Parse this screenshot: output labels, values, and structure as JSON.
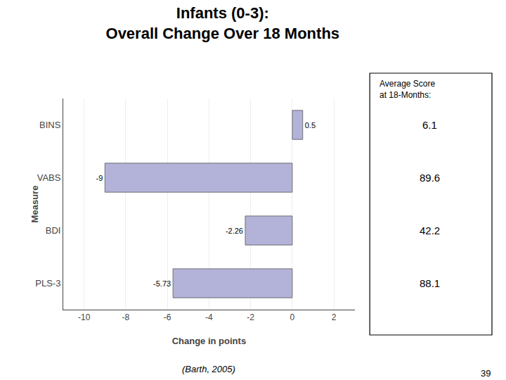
{
  "chart_data": {
    "type": "bar",
    "orientation": "horizontal",
    "title": "Infants (0-3):",
    "subtitle": "Overall Change Over 18 Months",
    "categories": [
      "PLS-3",
      "BDI",
      "VABS",
      "BINS"
    ],
    "values": [
      -5.73,
      -2.26,
      -9.0,
      0.5
    ],
    "data_labels": true,
    "color": "#b3b3d9",
    "xlabel": "Change in points",
    "ylabel": "Measure",
    "xlim": [
      -11,
      3
    ],
    "xticks": [
      -10,
      -8,
      -6,
      -4,
      -2,
      0,
      2
    ],
    "grid": true,
    "avg_scores_header": [
      "Average Score",
      "at 18-Months:"
    ],
    "avg_scores": [
      88.1,
      42.2,
      89.6,
      6.1
    ],
    "annotations": [
      "(Barth, 2005)",
      "39"
    ]
  }
}
